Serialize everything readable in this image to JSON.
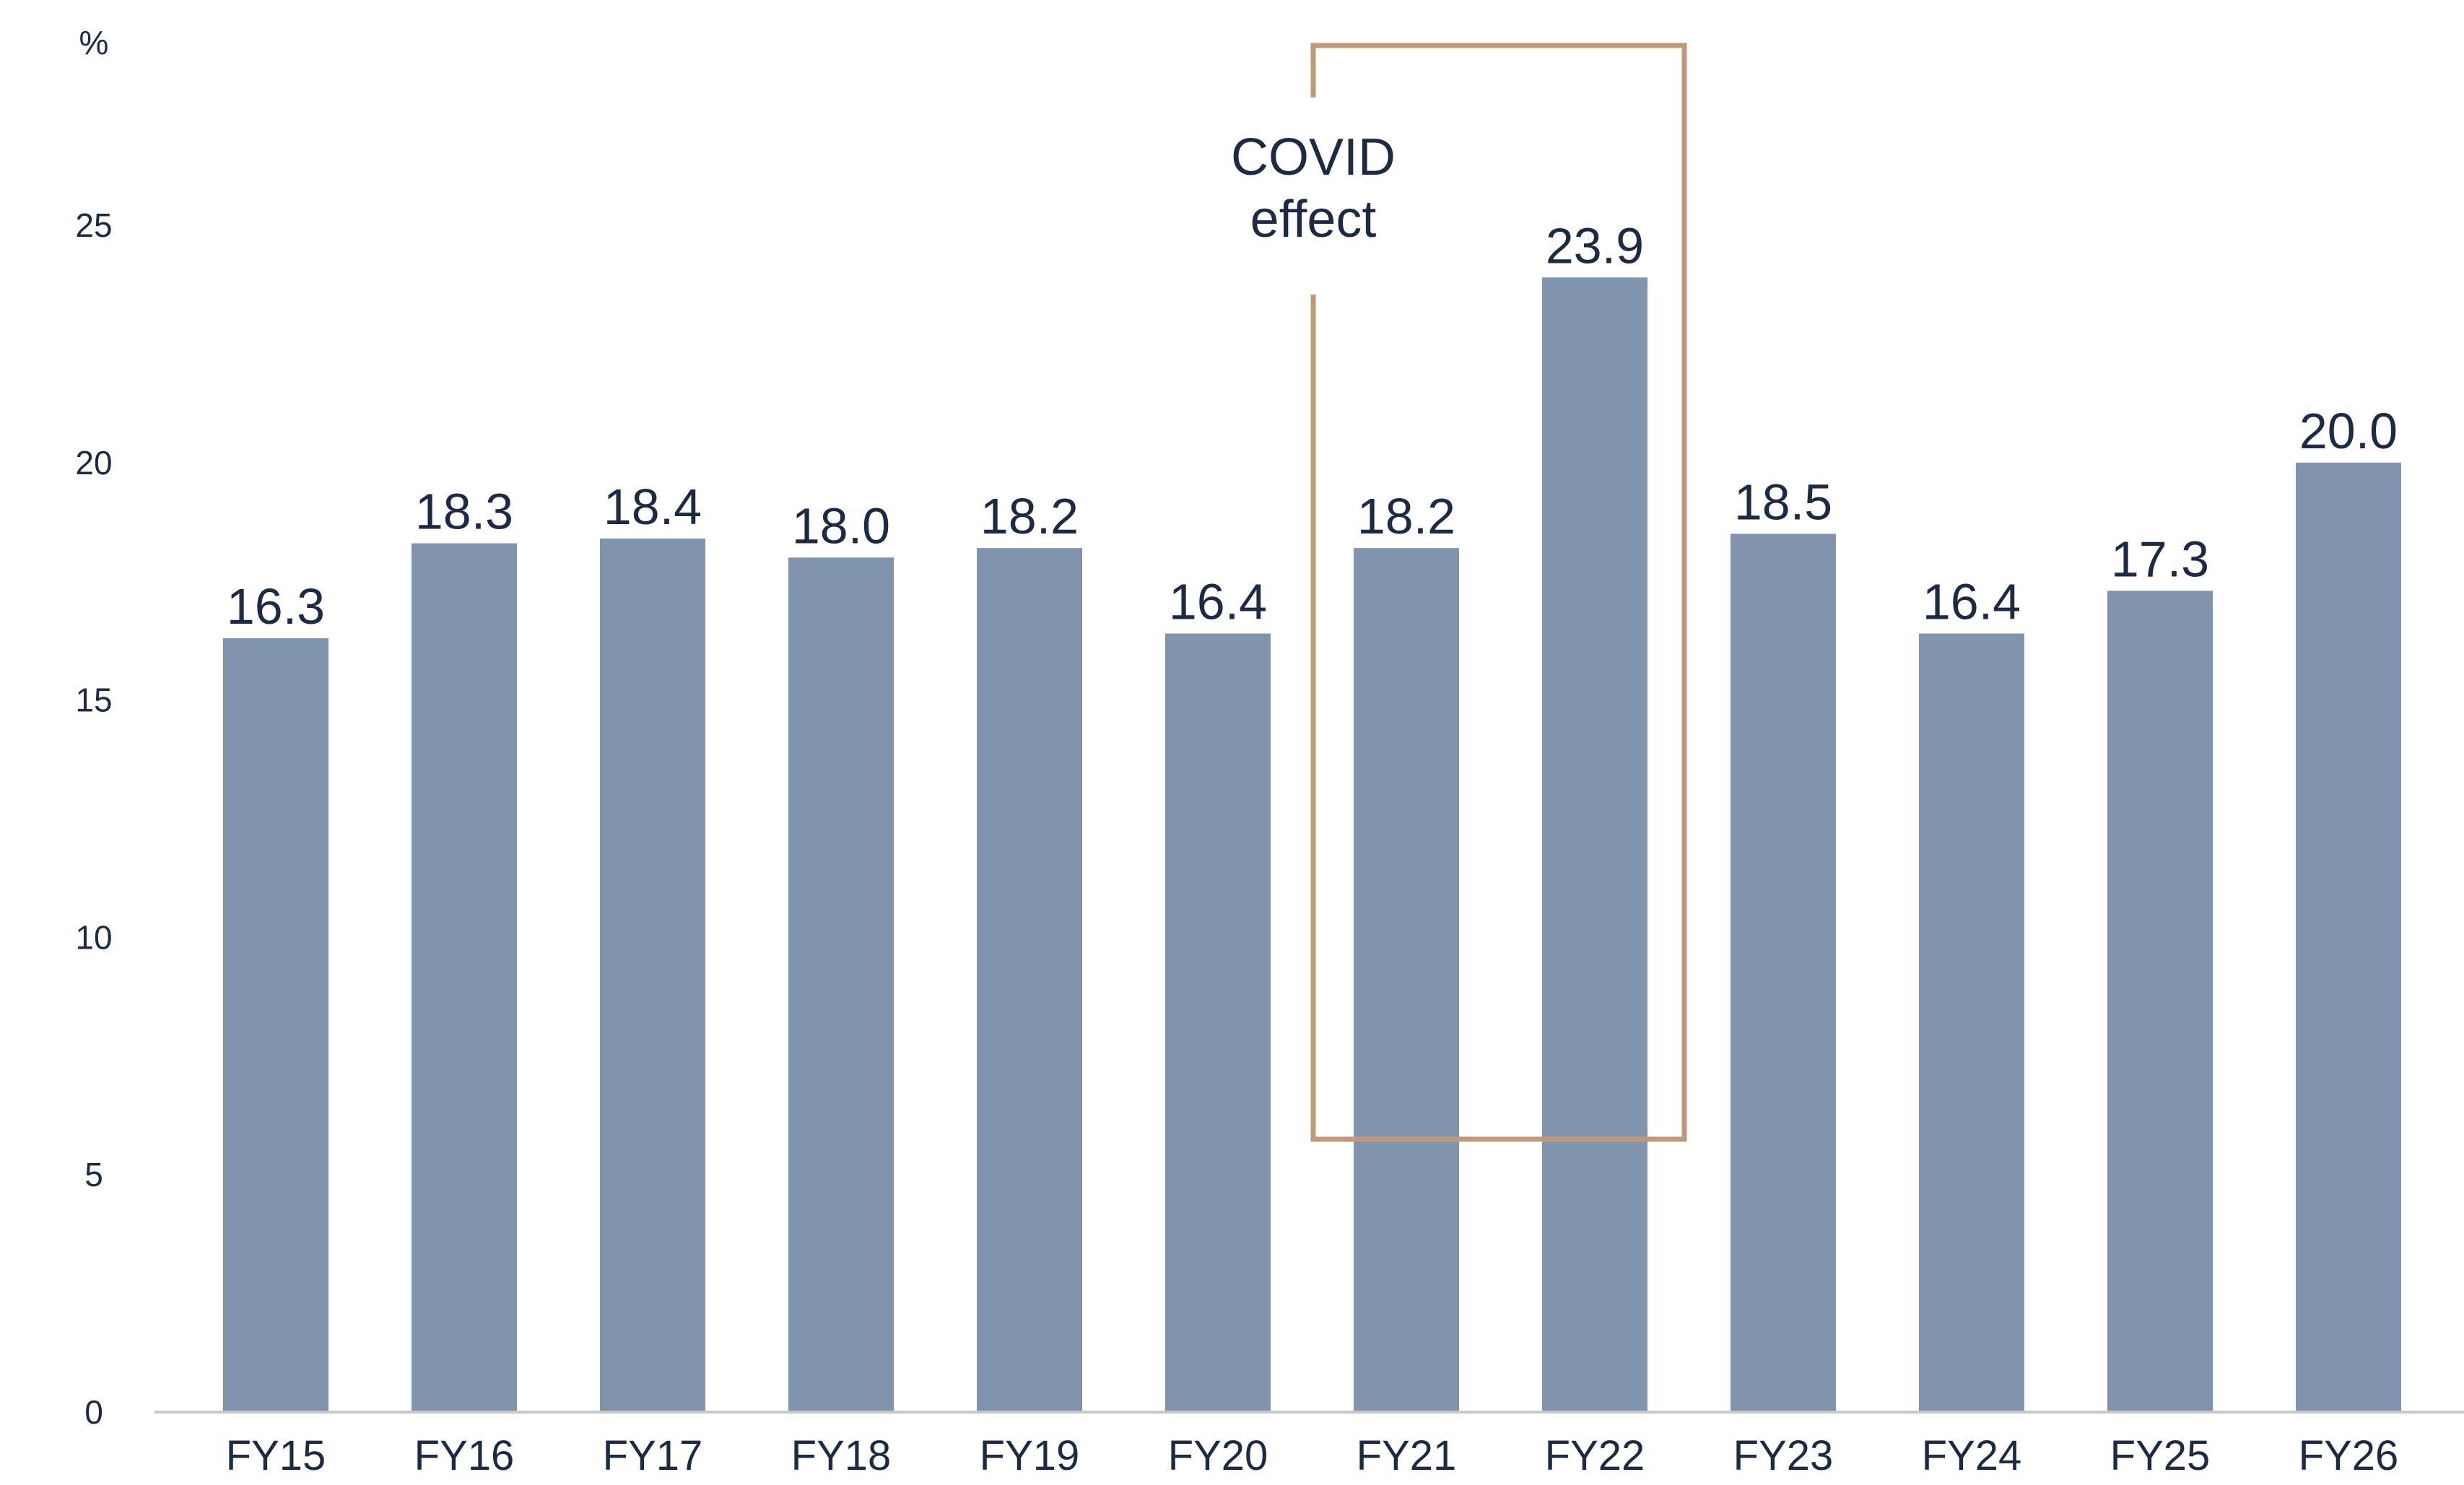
{
  "chart_data": {
    "type": "bar",
    "unit_label": "%",
    "categories": [
      "FY15",
      "FY16",
      "FY17",
      "FY18",
      "FY19",
      "FY20",
      "FY21",
      "FY22",
      "FY23",
      "FY24",
      "FY25",
      "FY26"
    ],
    "values": [
      16.3,
      18.3,
      18.4,
      18.0,
      18.2,
      16.4,
      18.2,
      23.9,
      18.5,
      16.4,
      17.3,
      20.0
    ],
    "value_labels": [
      "16.3",
      "18.3",
      "18.4",
      "18.0",
      "18.2",
      "16.4",
      "18.2",
      "23.9",
      "18.5",
      "16.4",
      "17.3",
      "20.0"
    ],
    "ylim": [
      0,
      30
    ],
    "yticks": [
      0,
      5,
      10,
      15,
      20,
      25
    ],
    "grid": false,
    "bar_color": "#8094ad",
    "annotation": {
      "lines": [
        "COVID",
        "effect"
      ],
      "categories": [
        "FY21",
        "FY22"
      ],
      "box_color": "#c0987a"
    }
  }
}
